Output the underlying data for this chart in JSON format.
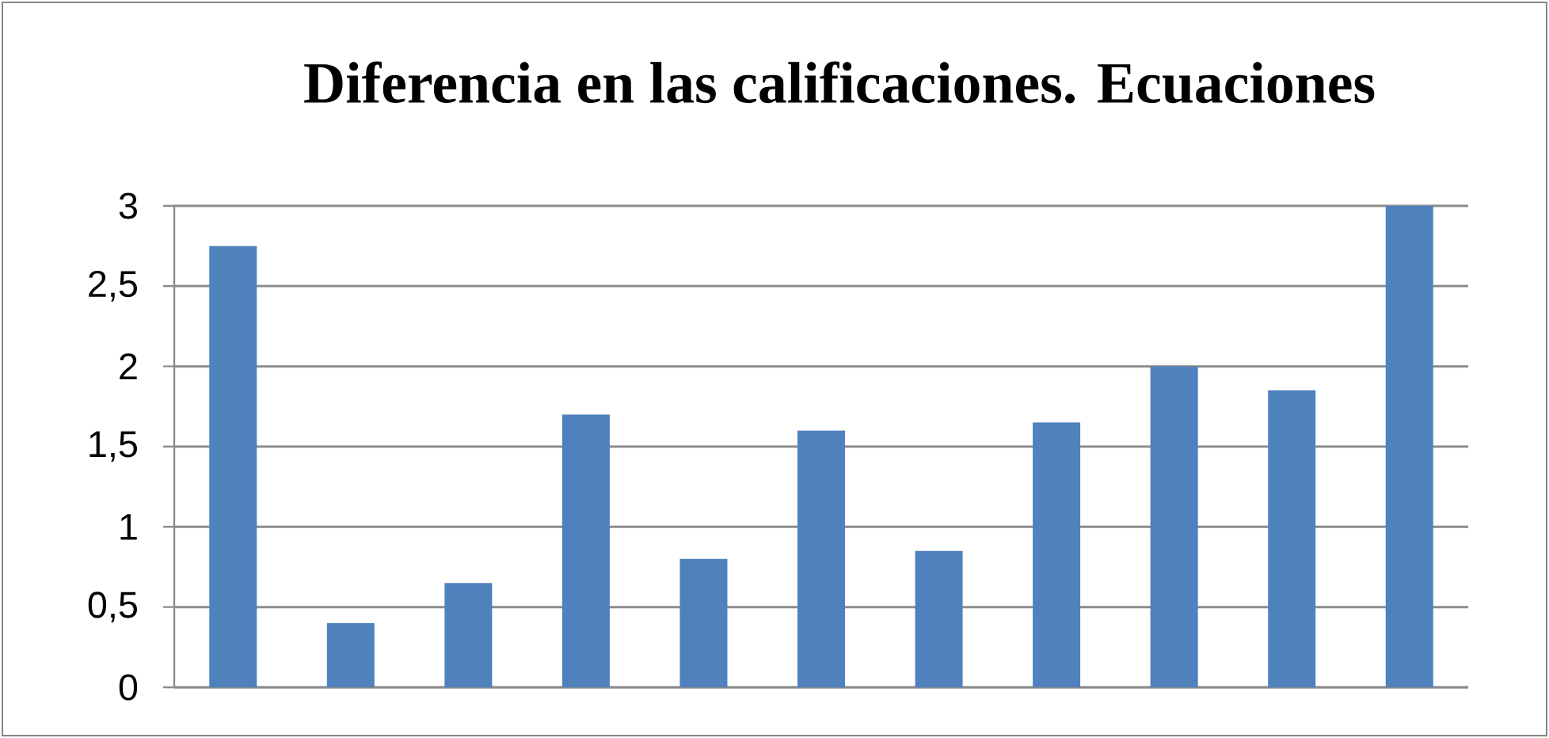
{
  "chart_data": {
    "type": "bar",
    "title": "Diferencia en las calificaciones. Ecuaciones",
    "categories": [
      null,
      null,
      null,
      null,
      null,
      null,
      null,
      null,
      null,
      null,
      null
    ],
    "values": [
      2.75,
      0.4,
      0.65,
      1.7,
      0.8,
      1.6,
      0.85,
      1.65,
      2.0,
      1.85,
      3.0
    ],
    "color": "#4f81bd",
    "ylim": [
      0,
      3
    ],
    "yticks": [
      0,
      {
        "value": 0.5,
        "label": "0,5"
      },
      1,
      {
        "value": 1.5,
        "label": "1,5"
      },
      2,
      {
        "value": 2.5,
        "label": "2,5"
      },
      3
    ],
    "grid": "y"
  }
}
